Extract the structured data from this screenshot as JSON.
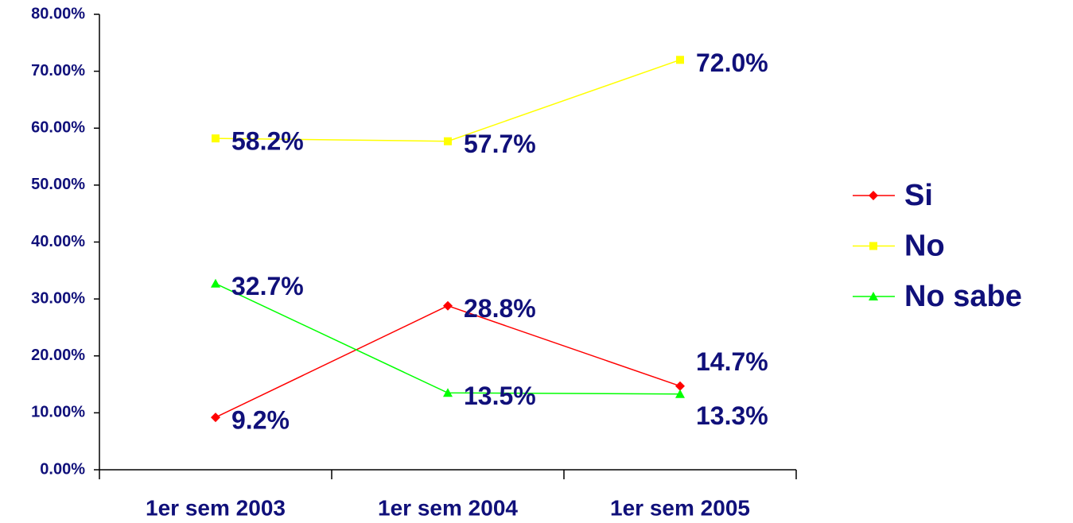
{
  "chart_data": {
    "type": "line",
    "categories": [
      "1er sem 2003",
      "1er sem 2004",
      "1er sem 2005"
    ],
    "series": [
      {
        "name": "Si",
        "color": "#ff0000",
        "marker": "diamond",
        "values": [
          9.2,
          28.8,
          14.7
        ],
        "value_labels": [
          "9.2%",
          "28.8%",
          "14.7%"
        ]
      },
      {
        "name": "No",
        "color": "#ffff00",
        "marker": "square",
        "values": [
          58.2,
          57.7,
          72.0
        ],
        "value_labels": [
          "58.2%",
          "57.7%",
          "72.0%"
        ]
      },
      {
        "name": "No sabe",
        "color": "#00ff00",
        "marker": "triangle",
        "values": [
          32.7,
          13.5,
          13.3
        ],
        "value_labels": [
          "32.7%",
          "13.5%",
          "13.3%"
        ]
      }
    ],
    "ylim": [
      0,
      80
    ],
    "yticks": [
      {
        "value": 0,
        "label": "0.00%"
      },
      {
        "value": 10,
        "label": "10.00%"
      },
      {
        "value": 20,
        "label": "20.00%"
      },
      {
        "value": 30,
        "label": "30.00%"
      },
      {
        "value": 40,
        "label": "40.00%"
      },
      {
        "value": 50,
        "label": "50.00%"
      },
      {
        "value": 60,
        "label": "60.00%"
      },
      {
        "value": 70,
        "label": "70.00%"
      },
      {
        "value": 80,
        "label": "80.00%"
      }
    ],
    "grid": false,
    "legend": "right"
  }
}
